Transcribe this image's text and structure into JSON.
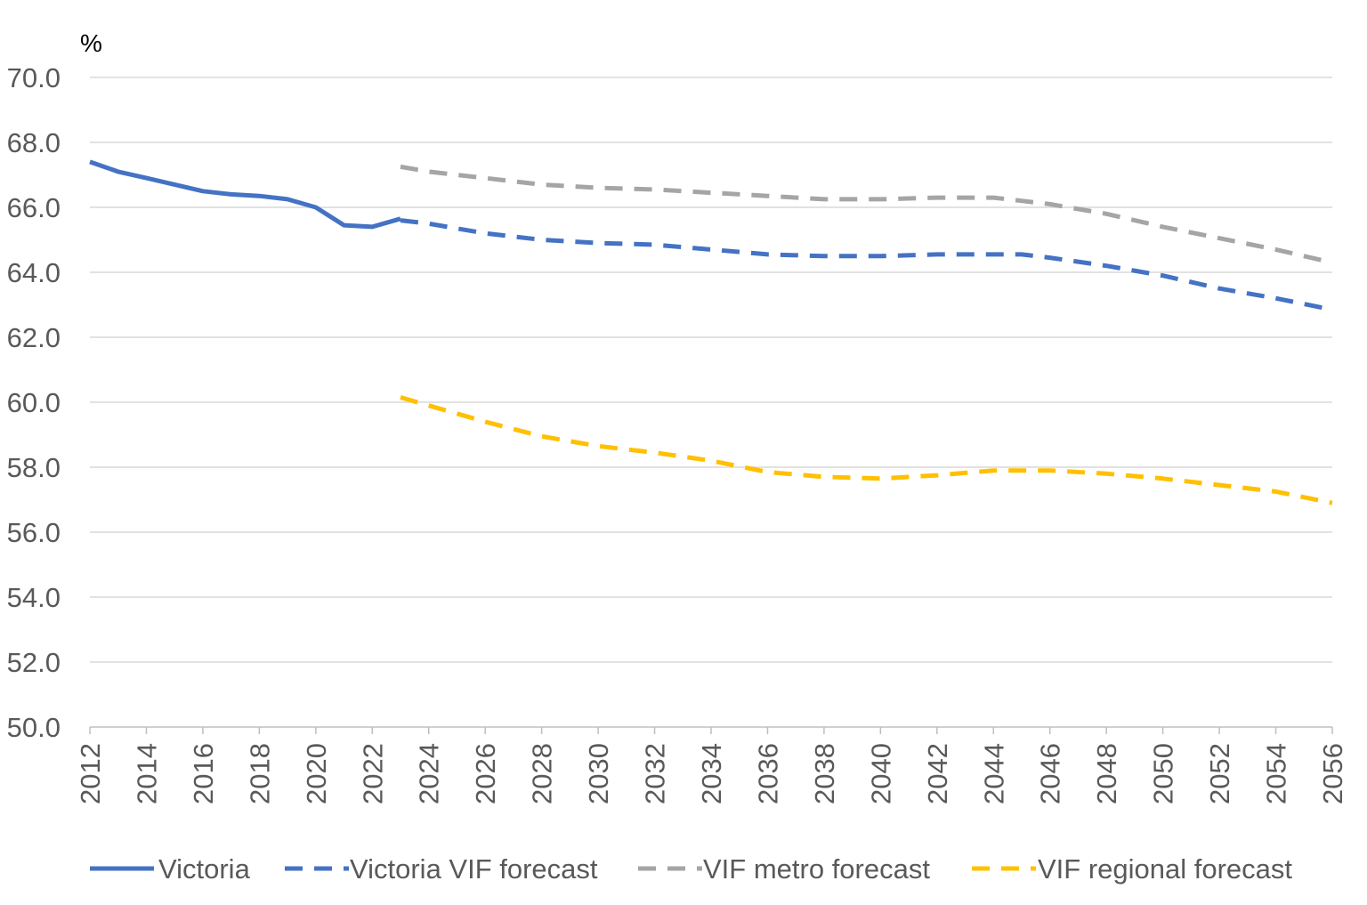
{
  "chart_data": {
    "type": "line",
    "unit_label": "%",
    "xlabel": "",
    "ylabel": "",
    "xlim": [
      2012,
      2056
    ],
    "ylim": [
      50,
      70
    ],
    "y_ticks": [
      "50.0",
      "52.0",
      "54.0",
      "56.0",
      "58.0",
      "60.0",
      "62.0",
      "64.0",
      "66.0",
      "68.0",
      "70.0"
    ],
    "x_ticks": [
      "2012",
      "2014",
      "2016",
      "2018",
      "2020",
      "2022",
      "2024",
      "2026",
      "2028",
      "2030",
      "2032",
      "2034",
      "2036",
      "2038",
      "2040",
      "2042",
      "2044",
      "2046",
      "2048",
      "2050",
      "2052",
      "2054",
      "2056"
    ],
    "grid": "horizontal",
    "legend_position": "bottom",
    "series": [
      {
        "name": "Victoria",
        "color": "#4472C4",
        "style": "solid",
        "x": [
          2012,
          2013,
          2014,
          2015,
          2016,
          2017,
          2018,
          2019,
          2020,
          2021,
          2022,
          2023
        ],
        "values": [
          67.4,
          67.1,
          66.9,
          66.7,
          66.5,
          66.4,
          66.35,
          66.25,
          66.0,
          65.45,
          65.4,
          65.65
        ]
      },
      {
        "name": "Victoria VIF forecast",
        "color": "#4472C4",
        "style": "dashed",
        "x": [
          2023,
          2024,
          2026,
          2028,
          2030,
          2032,
          2034,
          2036,
          2038,
          2040,
          2042,
          2044,
          2045,
          2046,
          2048,
          2050,
          2052,
          2054,
          2056
        ],
        "values": [
          65.6,
          65.5,
          65.2,
          65.0,
          64.9,
          64.85,
          64.7,
          64.55,
          64.5,
          64.5,
          64.55,
          64.55,
          64.55,
          64.45,
          64.2,
          63.9,
          63.5,
          63.2,
          62.85
        ]
      },
      {
        "name": "VIF metro forecast",
        "color": "#A5A5A5",
        "style": "dashed",
        "x": [
          2023,
          2024,
          2026,
          2028,
          2030,
          2032,
          2034,
          2036,
          2038,
          2040,
          2042,
          2044,
          2045,
          2046,
          2048,
          2050,
          2052,
          2054,
          2056
        ],
        "values": [
          67.25,
          67.1,
          66.9,
          66.7,
          66.6,
          66.55,
          66.45,
          66.35,
          66.25,
          66.25,
          66.3,
          66.3,
          66.2,
          66.1,
          65.8,
          65.4,
          65.05,
          64.7,
          64.3
        ]
      },
      {
        "name": "VIF regional forecast",
        "color": "#FFC000",
        "style": "dashed",
        "x": [
          2023,
          2024,
          2026,
          2028,
          2030,
          2032,
          2034,
          2036,
          2038,
          2040,
          2042,
          2044,
          2046,
          2048,
          2050,
          2052,
          2054,
          2056
        ],
        "values": [
          60.15,
          59.9,
          59.4,
          58.95,
          58.65,
          58.45,
          58.2,
          57.85,
          57.7,
          57.65,
          57.75,
          57.9,
          57.9,
          57.8,
          57.65,
          57.45,
          57.25,
          56.9
        ]
      }
    ]
  }
}
